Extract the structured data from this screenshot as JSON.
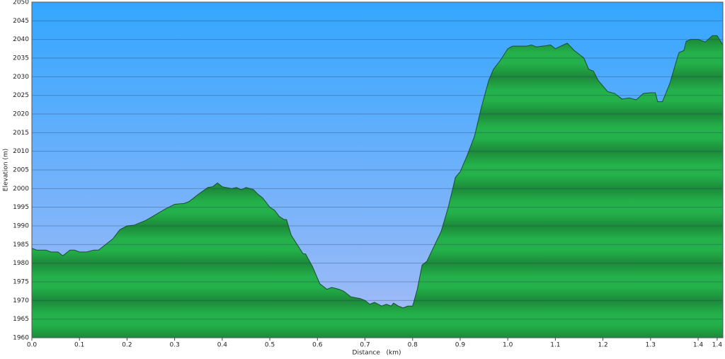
{
  "chart_data": {
    "type": "area",
    "x_label": "Distance   (km)",
    "y_label": "Elevation (m)",
    "x": [
      0,
      0.01,
      0.03,
      0.04,
      0.055,
      0.065,
      0.08,
      0.09,
      0.1,
      0.115,
      0.13,
      0.14,
      0.15,
      0.17,
      0.185,
      0.2,
      0.215,
      0.24,
      0.26,
      0.28,
      0.3,
      0.32,
      0.33,
      0.35,
      0.37,
      0.38,
      0.39,
      0.4,
      0.42,
      0.43,
      0.44,
      0.45,
      0.465,
      0.475,
      0.485,
      0.5,
      0.51,
      0.52,
      0.53,
      0.535,
      0.545,
      0.56,
      0.57,
      0.575,
      0.59,
      0.605,
      0.62,
      0.63,
      0.645,
      0.655,
      0.67,
      0.69,
      0.7,
      0.71,
      0.72,
      0.735,
      0.745,
      0.755,
      0.76,
      0.77,
      0.78,
      0.79,
      0.8,
      0.81,
      0.82,
      0.83,
      0.845,
      0.86,
      0.875,
      0.89,
      0.9,
      0.915,
      0.93,
      0.945,
      0.96,
      0.97,
      0.985,
      1.0,
      1.01,
      1.04,
      1.05,
      1.06,
      1.08,
      1.09,
      1.1,
      1.12,
      1.125,
      1.14,
      1.16,
      1.17,
      1.18,
      1.19,
      1.21,
      1.225,
      1.24,
      1.255,
      1.27,
      1.285,
      1.3,
      1.31,
      1.315,
      1.325,
      1.34,
      1.355,
      1.36,
      1.37,
      1.375,
      1.385,
      1.4,
      1.415,
      1.43,
      1.44,
      1.452
    ],
    "values": [
      1984,
      1983.5,
      1983.5,
      1983,
      1983,
      1982,
      1983.5,
      1983.5,
      1983,
      1983,
      1983.5,
      1983.5,
      1984.5,
      1986.5,
      1989,
      1990,
      1990.2,
      1991.5,
      1993,
      1994.5,
      1995.8,
      1996,
      1996.5,
      1998.5,
      2000.3,
      2000.5,
      2001.5,
      2000.5,
      2000,
      2000.3,
      1999.7,
      2000.3,
      1999.8,
      1998.5,
      1997.5,
      1995,
      1994.2,
      1992.5,
      1991.7,
      1991.7,
      1987.5,
      1984.5,
      1982.5,
      1982.5,
      1979,
      1974.5,
      1973,
      1973.5,
      1973,
      1972.5,
      1971,
      1970.5,
      1970,
      1969,
      1969.5,
      1968.5,
      1969,
      1968.5,
      1969.3,
      1968.5,
      1968,
      1968.5,
      1968.5,
      1973,
      1979.5,
      1980.5,
      1984.5,
      1988.5,
      1995,
      2003,
      2004.5,
      2009,
      2014,
      2022,
      2029,
      2032,
      2034.5,
      2037.5,
      2038.2,
      2038.2,
      2038.5,
      2038,
      2038.3,
      2038.5,
      2037.5,
      2038.7,
      2039,
      2037,
      2035,
      2032,
      2031.5,
      2029,
      2026,
      2025.5,
      2024,
      2024.3,
      2023.8,
      2025.5,
      2025.7,
      2025.7,
      2023.3,
      2023.3,
      2028,
      2034.5,
      2036.5,
      2037,
      2039.5,
      2040,
      2040,
      2039.3,
      2041,
      2041,
      2038.5
    ],
    "color": "#22aa44",
    "line_color": "#1d4d30",
    "xlim": [
      0,
      1.452
    ],
    "ylim": [
      1960,
      2050
    ],
    "xticks": [
      {
        "value": 0,
        "label": "0.0"
      },
      0.1,
      0.2,
      0.3,
      0.4,
      0.5,
      0.6,
      0.7,
      0.8,
      0.9,
      {
        "value": 1,
        "label": "1.0"
      },
      1.1,
      1.2,
      1.3,
      1.4,
      {
        "value": 1.44,
        "label": "1.4"
      }
    ],
    "yticks": [
      1960,
      1965,
      1970,
      1975,
      1980,
      1985,
      1990,
      1995,
      2000,
      2005,
      2010,
      2015,
      2020,
      2025,
      2030,
      2035,
      2040,
      2045,
      2050
    ],
    "grid": true
  }
}
